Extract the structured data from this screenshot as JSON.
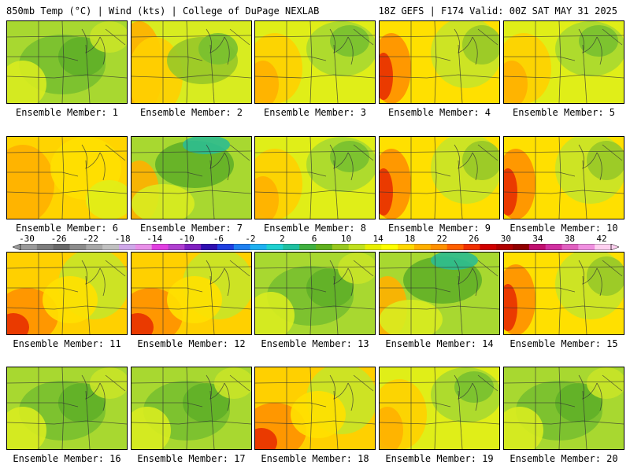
{
  "header": {
    "left": "850mb Temp (°C) | Wind (kts) | College of DuPage NEXLAB",
    "right": "18Z GEFS | F174 Valid: 00Z SAT MAY 31 2025"
  },
  "members": [
    {
      "label": "Ensemble Member: 1",
      "scheme": "green"
    },
    {
      "label": "Ensemble Member: 2",
      "scheme": "warmwest"
    },
    {
      "label": "Ensemble Member: 3",
      "scheme": "mixed"
    },
    {
      "label": "Ensemble Member: 4",
      "scheme": "hotwest"
    },
    {
      "label": "Ensemble Member: 5",
      "scheme": "mixed"
    },
    {
      "label": "Ensemble Member: 6",
      "scheme": "warm"
    },
    {
      "label": "Ensemble Member: 7",
      "scheme": "coolnorth"
    },
    {
      "label": "Ensemble Member: 8",
      "scheme": "mixed"
    },
    {
      "label": "Ensemble Member: 9",
      "scheme": "hotwest"
    },
    {
      "label": "Ensemble Member: 10",
      "scheme": "hotwest"
    },
    {
      "label": "Ensemble Member: 11",
      "scheme": "hotsw"
    },
    {
      "label": "Ensemble Member: 12",
      "scheme": "hotsw"
    },
    {
      "label": "Ensemble Member: 13",
      "scheme": "green"
    },
    {
      "label": "Ensemble Member: 14",
      "scheme": "coolnorth"
    },
    {
      "label": "Ensemble Member: 15",
      "scheme": "hotwest"
    },
    {
      "label": "Ensemble Member: 16",
      "scheme": "green"
    },
    {
      "label": "Ensemble Member: 17",
      "scheme": "green"
    },
    {
      "label": "Ensemble Member: 18",
      "scheme": "hotsw"
    },
    {
      "label": "Ensemble Member: 19",
      "scheme": "mixed"
    },
    {
      "label": "Ensemble Member: 20",
      "scheme": "green"
    }
  ],
  "colorbar": {
    "ticks": [
      "-30",
      "-26",
      "-22",
      "-18",
      "-14",
      "-10",
      "-6",
      "-2",
      "2",
      "6",
      "10",
      "14",
      "18",
      "22",
      "26",
      "30",
      "34",
      "38",
      "42"
    ],
    "colors": [
      "#9a9a9a",
      "#7d7d7d",
      "#6a6a6a",
      "#8c8c8c",
      "#a8a8a8",
      "#c0c0c0",
      "#cfa8e8",
      "#e890e8",
      "#e040e0",
      "#b040d0",
      "#8020c0",
      "#3010b0",
      "#2040e0",
      "#2080f0",
      "#20b0f0",
      "#20d0d0",
      "#20c0a0",
      "#40b040",
      "#60b020",
      "#98c820",
      "#c0e020",
      "#e8f000",
      "#ffff00",
      "#ffd800",
      "#ffb000",
      "#ff9000",
      "#ff6000",
      "#f03000",
      "#d00000",
      "#b00000",
      "#900000",
      "#c01070",
      "#d030a0",
      "#e060c0",
      "#f090e0",
      "#ffd0f0"
    ]
  }
}
